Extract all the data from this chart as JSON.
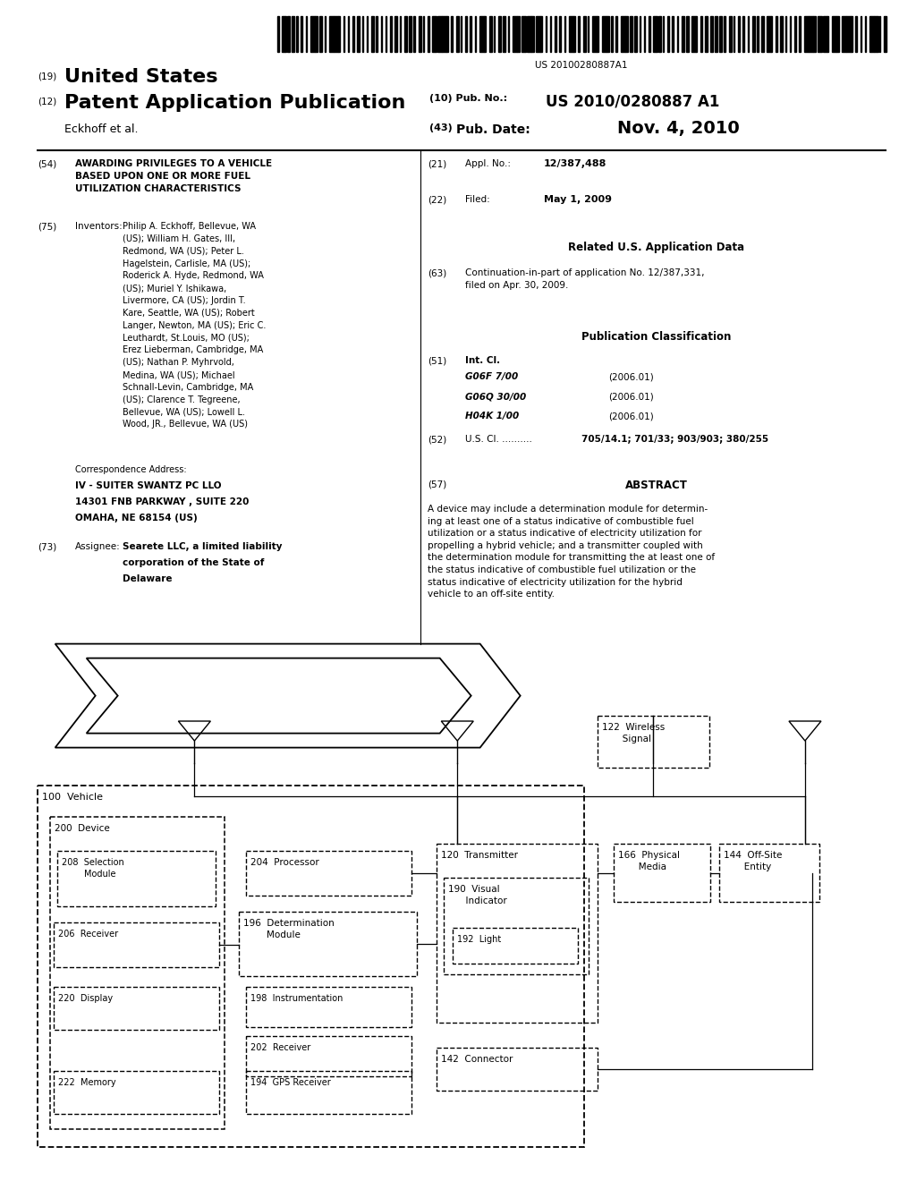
{
  "background_color": "#ffffff",
  "barcode_text": "US 20100280887A1",
  "header_19": "(19)",
  "header_19_text": "United States",
  "header_12": "(12)",
  "header_12_text": "Patent Application Publication",
  "header_10_label": "(10) Pub. No.:",
  "header_10_value": "US 2010/0280887 A1",
  "header_43_label": "(43)",
  "header_43_pub": "Pub. Date:",
  "header_43_value": "Nov. 4, 2010",
  "author_line": "Eckhoff et al.",
  "field_54_label": "(54)",
  "field_54_title": "AWARDING PRIVILEGES TO A VEHICLE\nBASED UPON ONE OR MORE FUEL\nUTILIZATION CHARACTERISTICS",
  "field_75_label": "(75)",
  "field_75_name": "Inventors:",
  "field_75_text": "Philip A. Eckhoff, Bellevue, WA\n(US); William H. Gates, III,\nRedmond, WA (US); Peter L.\nHagelstein, Carlisle, MA (US);\nRoderick A. Hyde, Redmond, WA\n(US); Muriel Y. Ishikawa,\nLivermore, CA (US); Jordin T.\nKare, Seattle, WA (US); Robert\nLanger, Newton, MA (US); Eric C.\nLeuthardt, St.Louis, MO (US);\nErez Lieberman, Cambridge, MA\n(US); Nathan P. Myhrvold,\nMedina, WA (US); Michael\nSchnall-Levin, Cambridge, MA\n(US); Clarence T. Tegreene,\nBellevue, WA (US); Lowell L.\nWood, JR., Bellevue, WA (US)",
  "correspondence_label": "Correspondence Address:",
  "corr_line1": "IV - SUITER SWANTZ PC LLO",
  "corr_line2": "14301 FNB PARKWAY , SUITE 220",
  "corr_line3": "OMAHA, NE 68154 (US)",
  "field_73_label": "(73)",
  "field_73_name": "Assignee:",
  "field_73_line1": "Searete LLC, a limited liability",
  "field_73_line2": "corporation of the State of",
  "field_73_line3": "Delaware",
  "field_21_label": "(21)",
  "field_21_name": "Appl. No.:",
  "field_21_value": "12/387,488",
  "field_22_label": "(22)",
  "field_22_name": "Filed:",
  "field_22_value": "May 1, 2009",
  "related_title": "Related U.S. Application Data",
  "field_63_label": "(63)",
  "field_63_text": "Continuation-in-part of application No. 12/387,331,\nfiled on Apr. 30, 2009.",
  "pub_class_title": "Publication Classification",
  "field_51_label": "(51)",
  "field_51_name": "Int. Cl.",
  "field_51_classes": [
    [
      "G06F 7/00",
      "(2006.01)"
    ],
    [
      "G06Q 30/00",
      "(2006.01)"
    ],
    [
      "H04K 1/00",
      "(2006.01)"
    ]
  ],
  "field_52_label": "(52)",
  "field_52_text": "U.S. Cl. ..........",
  "field_52_value": "705/14.1; 701/33; 903/903; 380/255",
  "field_57_label": "(57)",
  "field_57_name": "ABSTRACT",
  "field_57_text": "A device may include a determination module for determin-\ning at least one of a status indicative of combustible fuel\nutilization or a status indicative of electricity utilization for\npropelling a hybrid vehicle; and a transmitter coupled with\nthe determination module for transmitting the at least one of\nthe status indicative of combustible fuel utilization or the\nstatus indicative of electricity utilization for the hybrid\nvehicle to an off-site entity."
}
